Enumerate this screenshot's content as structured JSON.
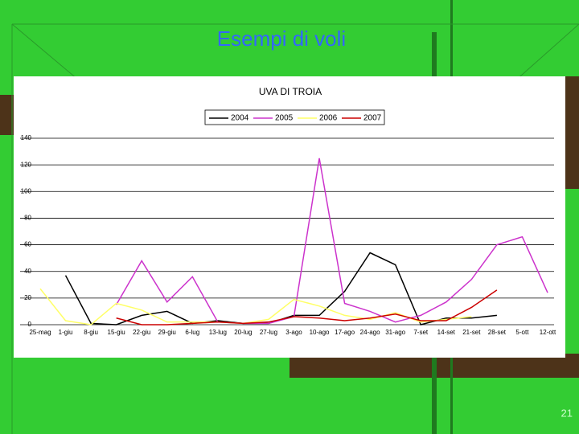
{
  "slide": {
    "title": "Esempi di voli",
    "page_number": "21"
  },
  "chart_data": {
    "type": "line",
    "title": "UVA DI TROIA",
    "categories": [
      "25-mag",
      "1-giu",
      "8-giu",
      "15-giu",
      "22-giu",
      "29-giu",
      "6-lug",
      "13-lug",
      "20-lug",
      "27-lug",
      "3-ago",
      "10-ago",
      "17-ago",
      "24-ago",
      "31-ago",
      "7-set",
      "14-set",
      "21-set",
      "28-set",
      "5-ott",
      "12-ott"
    ],
    "series": [
      {
        "name": "2004",
        "color": "#000000",
        "values": [
          null,
          37,
          1,
          0,
          7,
          10,
          1,
          3,
          1,
          1,
          7,
          7,
          25,
          54,
          45,
          0,
          5,
          5,
          7,
          null,
          null
        ]
      },
      {
        "name": "2005",
        "color": "#cc33cc",
        "values": [
          null,
          null,
          null,
          15,
          48,
          17,
          36,
          2,
          1,
          1,
          6,
          125,
          16,
          10,
          2,
          7,
          17,
          34,
          60,
          66,
          24
        ]
      },
      {
        "name": "2006",
        "color": "#ffff66",
        "values": [
          27,
          3,
          0,
          16,
          11,
          2,
          2,
          2,
          1,
          4,
          19,
          14,
          7,
          4,
          9,
          2,
          4,
          6,
          null,
          null,
          null
        ]
      },
      {
        "name": "2007",
        "color": "#cc0000",
        "values": [
          null,
          null,
          null,
          5,
          0,
          0,
          1,
          2,
          1,
          2,
          6,
          5,
          3,
          5,
          8,
          3,
          3,
          13,
          26,
          null,
          null
        ]
      }
    ],
    "ylim": [
      0,
      140
    ],
    "yticks": [
      0,
      20,
      40,
      60,
      80,
      100,
      120,
      140
    ],
    "grid": true,
    "legend": "top"
  }
}
